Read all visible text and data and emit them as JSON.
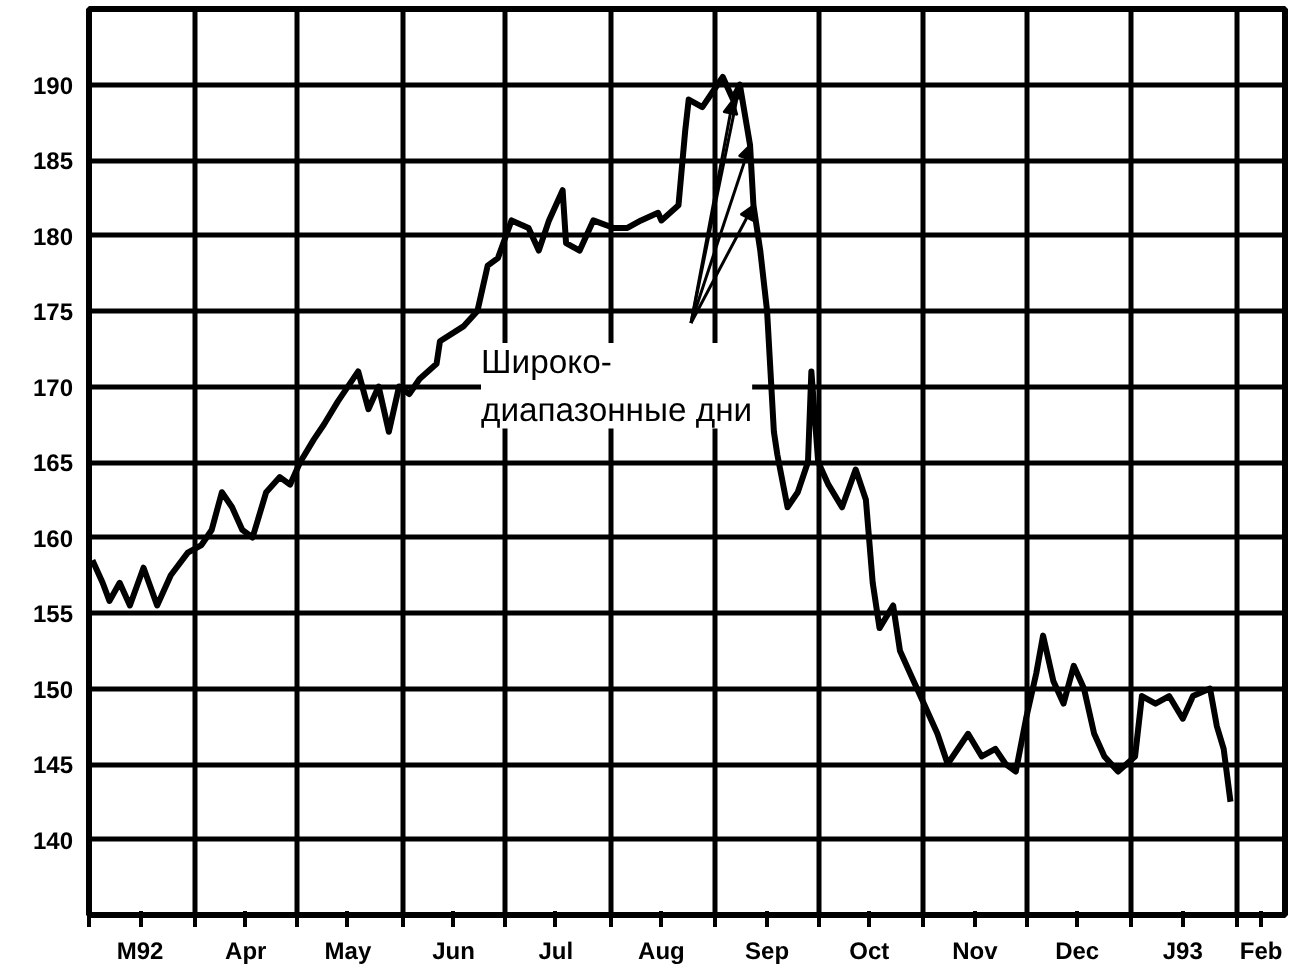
{
  "chart_data": {
    "type": "line",
    "grid": true,
    "line_style": "solid",
    "x": [
      "1992-03-02",
      "1992-03-05",
      "1992-03-07",
      "1992-03-10",
      "1992-03-13",
      "1992-03-17",
      "1992-03-21",
      "1992-03-25",
      "1992-03-30",
      "1992-04-03",
      "1992-04-06",
      "1992-04-09",
      "1992-04-12",
      "1992-04-15",
      "1992-04-18",
      "1992-04-22",
      "1992-04-26",
      "1992-04-29",
      "1992-05-02",
      "1992-05-06",
      "1992-05-09",
      "1992-05-13",
      "1992-05-19",
      "1992-05-22",
      "1992-05-25",
      "1992-05-28",
      "1992-05-31",
      "1992-06-03",
      "1992-06-06",
      "1992-06-11",
      "1992-06-12",
      "1992-06-19",
      "1992-06-23",
      "1992-06-26",
      "1992-06-29",
      "1992-07-03",
      "1992-07-08",
      "1992-07-11",
      "1992-07-14",
      "1992-07-18",
      "1992-07-19",
      "1992-07-23",
      "1992-07-27",
      "1992-08-02",
      "1992-08-06",
      "1992-08-10",
      "1992-08-15",
      "1992-08-16",
      "1992-08-21",
      "1992-08-23",
      "1992-08-24",
      "1992-08-28",
      "1992-08-31",
      "1992-09-03",
      "1992-09-06",
      "1992-09-08",
      "1992-09-11",
      "1992-09-12",
      "1992-09-14",
      "1992-09-16",
      "1992-09-18",
      "1992-09-19",
      "1992-09-22",
      "1992-09-25",
      "1992-09-28",
      "1992-09-29",
      "1992-10-01",
      "1992-10-04",
      "1992-10-08",
      "1992-10-12",
      "1992-10-15",
      "1992-10-17",
      "1992-10-19",
      "1992-10-23",
      "1992-10-25",
      "1992-10-28",
      "1992-11-01",
      "1992-11-05",
      "1992-11-08",
      "1992-11-14",
      "1992-11-18",
      "1992-11-22",
      "1992-11-25",
      "1992-11-28",
      "1992-12-01",
      "1992-12-04",
      "1992-12-06",
      "1992-12-09",
      "1992-12-12",
      "1992-12-15",
      "1992-12-18",
      "1992-12-21",
      "1992-12-24",
      "1992-12-28",
      "1993-01-02",
      "1993-01-04",
      "1993-01-08",
      "1993-01-12",
      "1993-01-16",
      "1993-01-19",
      "1993-01-24",
      "1993-01-26",
      "1993-01-28",
      "1993-01-30"
    ],
    "series": [
      {
        "color": "#000000",
        "values": [
          158.5,
          157,
          155.8,
          157,
          155.5,
          158,
          155.5,
          157.5,
          159,
          159.5,
          160.5,
          163,
          162,
          160.5,
          160,
          163,
          164,
          163.5,
          165,
          166.5,
          167.5,
          169,
          171,
          168.5,
          170,
          167,
          170,
          169.5,
          170.5,
          171.5,
          173,
          174,
          175,
          178,
          178.5,
          181,
          180.5,
          179,
          181,
          183,
          179.5,
          179,
          181,
          180.5,
          180.5,
          181,
          181.5,
          181,
          182,
          187,
          189,
          188.5,
          189.5,
          190.5,
          189,
          190,
          186,
          182,
          179,
          175,
          167,
          165.5,
          162,
          163,
          165,
          171,
          165,
          163.5,
          162,
          164.5,
          162.5,
          157,
          154,
          155.5,
          152.5,
          151,
          149,
          147,
          145,
          147,
          145.5,
          146,
          145,
          144.5,
          148,
          151,
          153.5,
          150.5,
          149,
          151.5,
          150,
          147,
          145.5,
          144.5,
          145.5,
          149.5,
          149,
          149.5,
          148,
          149.5,
          150,
          147.5,
          146,
          142.5
        ]
      }
    ],
    "xlim": [
      "1992-03-01",
      "1993-02-15"
    ],
    "xticks": [
      {
        "value": "1992-03-01",
        "label": null
      },
      {
        "value": "1992-03-16",
        "label": "M92"
      },
      {
        "value": "1992-04-01",
        "label": null
      },
      {
        "value": "1992-04-16",
        "label": "Apr"
      },
      {
        "value": "1992-05-01",
        "label": null
      },
      {
        "value": "1992-05-16",
        "label": "May"
      },
      {
        "value": "1992-06-01",
        "label": null
      },
      {
        "value": "1992-06-16",
        "label": "Jun"
      },
      {
        "value": "1992-07-01",
        "label": null
      },
      {
        "value": "1992-07-16",
        "label": "Jul"
      },
      {
        "value": "1992-08-01",
        "label": null
      },
      {
        "value": "1992-08-16",
        "label": "Aug"
      },
      {
        "value": "1992-09-01",
        "label": null
      },
      {
        "value": "1992-09-16",
        "label": "Sep"
      },
      {
        "value": "1992-10-01",
        "label": null
      },
      {
        "value": "1992-10-16",
        "label": "Oct"
      },
      {
        "value": "1992-11-01",
        "label": null
      },
      {
        "value": "1992-11-16",
        "label": "Nov"
      },
      {
        "value": "1992-12-01",
        "label": null
      },
      {
        "value": "1992-12-16",
        "label": "Dec"
      },
      {
        "value": "1993-01-01",
        "label": null
      },
      {
        "value": "1993-01-16",
        "label": "J93"
      },
      {
        "value": "1993-02-01",
        "label": null
      },
      {
        "value": "1993-02-08",
        "label": "Feb"
      }
    ],
    "ylim": [
      135,
      195
    ],
    "yticks": [
      140,
      145,
      150,
      155,
      160,
      165,
      170,
      175,
      180,
      185,
      190
    ],
    "annotations": [
      "Широко-\nдиапазонные дни"
    ]
  }
}
